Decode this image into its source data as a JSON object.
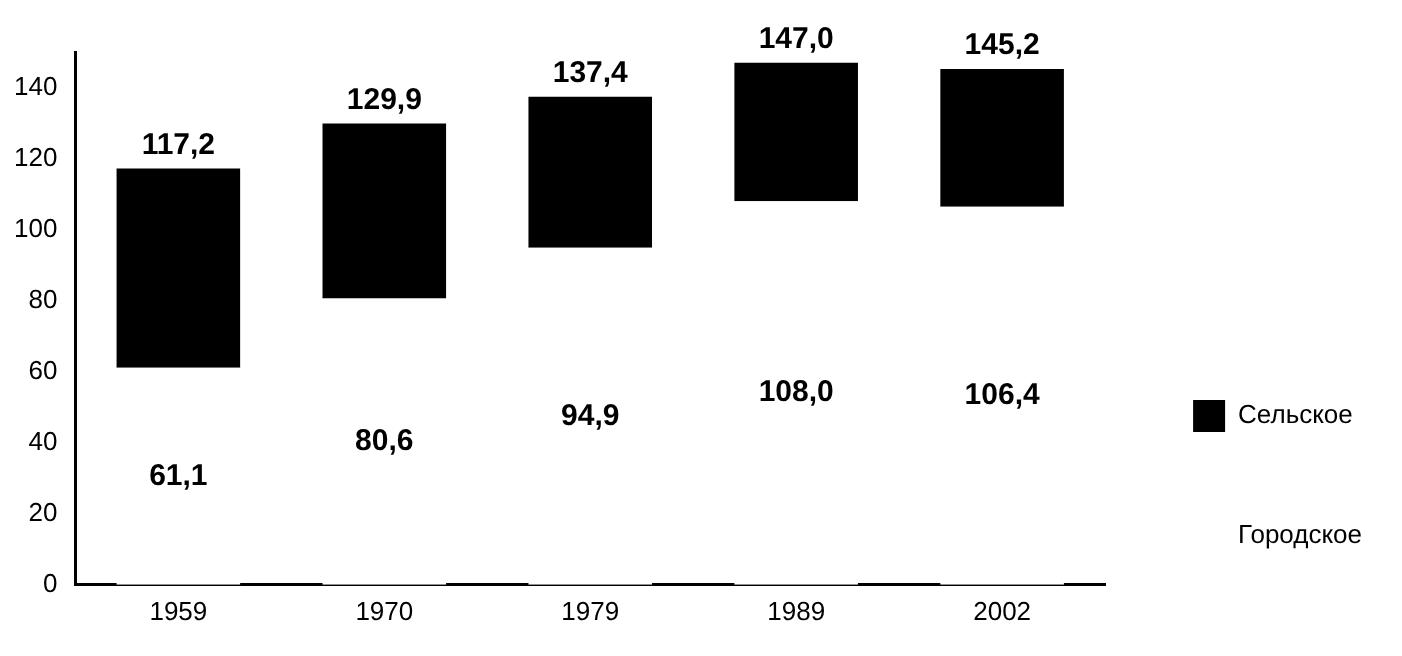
{
  "chart_data": {
    "type": "bar",
    "stacked": true,
    "categories": [
      "1959",
      "1970",
      "1979",
      "1989",
      "2002"
    ],
    "series": [
      {
        "name": "Городское",
        "color": "#ffffff",
        "values": [
          61.1,
          80.6,
          94.9,
          108.0,
          106.4
        ],
        "value_labels": [
          "61,1",
          "80,6",
          "94,9",
          "108,0",
          "106,4"
        ]
      },
      {
        "name": "Сельское",
        "color": "#000000",
        "values": [
          56.1,
          49.3,
          42.5,
          39.0,
          38.8
        ]
      }
    ],
    "totals": [
      "117,2",
      "129,9",
      "137,4",
      "147,0",
      "145,2"
    ],
    "ylim": [
      0,
      150
    ],
    "yticks": [
      0,
      20,
      40,
      60,
      80,
      100,
      120,
      140
    ],
    "grid": false,
    "legend": "right"
  }
}
